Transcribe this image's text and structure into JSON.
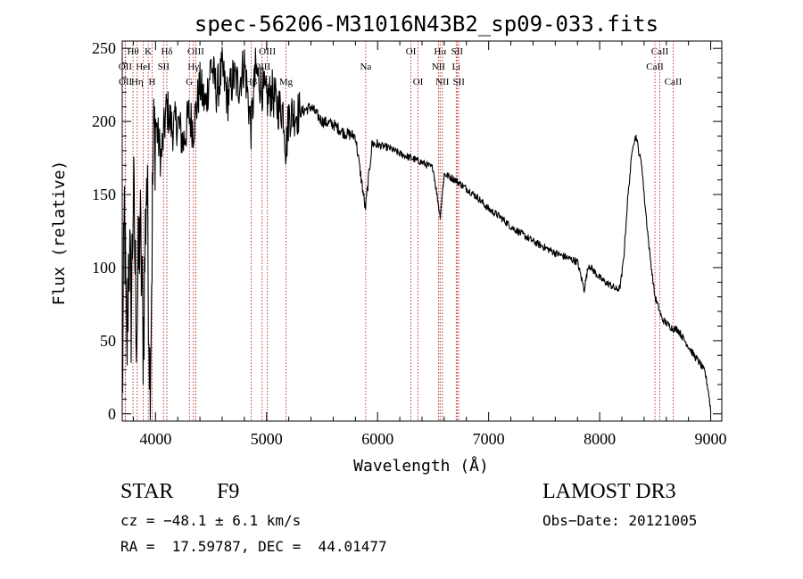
{
  "chart_data": {
    "type": "line",
    "title": "spec-56206-M31016N43B2_sp09-033.fits",
    "xlabel": "Wavelength (Å)",
    "ylabel": "Flux (relative)",
    "xlim": [
      3700,
      9100
    ],
    "ylim": [
      -5,
      255
    ],
    "xticks": [
      4000,
      5000,
      6000,
      7000,
      8000,
      9000
    ],
    "xminor_step": 200,
    "yticks": [
      0,
      50,
      100,
      150,
      200,
      250
    ],
    "yminor_step": 10,
    "series": [
      {
        "name": "flux",
        "x": [
          3700,
          3720,
          3740,
          3760,
          3780,
          3800,
          3830,
          3860,
          3890,
          3920,
          3950,
          3980,
          4000,
          4050,
          4100,
          4150,
          4200,
          4250,
          4300,
          4340,
          4400,
          4450,
          4500,
          4550,
          4600,
          4650,
          4700,
          4750,
          4800,
          4861,
          4900,
          4950,
          5000,
          5050,
          5100,
          5150,
          5175,
          5200,
          5300,
          5400,
          5500,
          5600,
          5700,
          5800,
          5890,
          5950,
          6000,
          6100,
          6200,
          6300,
          6400,
          6500,
          6563,
          6600,
          6700,
          6800,
          6900,
          7000,
          7100,
          7200,
          7300,
          7400,
          7500,
          7600,
          7700,
          7800,
          7860,
          7900,
          8000,
          8050,
          8100,
          8150,
          8180,
          8200,
          8220,
          8250,
          8280,
          8300,
          8330,
          8350,
          8380,
          8400,
          8450,
          8498,
          8542,
          8560,
          8600,
          8662,
          8700,
          8750,
          8800,
          8850,
          8900,
          8950,
          8980,
          9000
        ],
        "y": [
          5,
          140,
          30,
          120,
          70,
          150,
          60,
          130,
          50,
          170,
          20,
          180,
          200,
          175,
          210,
          195,
          200,
          185,
          205,
          195,
          225,
          210,
          240,
          220,
          235,
          215,
          230,
          225,
          240,
          195,
          235,
          225,
          215,
          220,
          210,
          208,
          180,
          205,
          206,
          210,
          200,
          198,
          192,
          190,
          140,
          185,
          184,
          182,
          178,
          175,
          172,
          168,
          135,
          164,
          160,
          154,
          148,
          140,
          135,
          128,
          123,
          118,
          114,
          110,
          107,
          104,
          85,
          102,
          93,
          90,
          88,
          85,
          86,
          95,
          110,
          145,
          170,
          185,
          190,
          180,
          170,
          150,
          110,
          80,
          70,
          65,
          62,
          58,
          58,
          52,
          46,
          40,
          35,
          28,
          15,
          2
        ]
      }
    ],
    "lines": [
      {
        "label": "Hθ",
        "x": 3797,
        "row": 0
      },
      {
        "label": "OII",
        "x": 3727,
        "row": 1
      },
      {
        "label": "OII",
        "x": 3729,
        "row": 2
      },
      {
        "label": "HeI",
        "x": 3889,
        "row": 1
      },
      {
        "label": "Hη",
        "x": 3835,
        "row": 2
      },
      {
        "label": "K",
        "x": 3934,
        "row": 0
      },
      {
        "label": "H",
        "x": 3969,
        "row": 2
      },
      {
        "label": "SII",
        "x": 4072,
        "row": 1
      },
      {
        "label": "Hδ",
        "x": 4102,
        "row": 0
      },
      {
        "label": "OIII",
        "x": 4363,
        "row": 0
      },
      {
        "label": "Hγ",
        "x": 4341,
        "row": 1
      },
      {
        "label": "G",
        "x": 4305,
        "row": 2
      },
      {
        "label": "OIII",
        "x": 5007,
        "row": 0
      },
      {
        "label": "OIII",
        "x": 4959,
        "row": 1
      },
      {
        "label": "Hβ",
        "x": 4861,
        "row": 2
      },
      {
        "label": "Mg",
        "x": 5175,
        "row": 2
      },
      {
        "label": "Na",
        "x": 5893,
        "row": 1
      },
      {
        "label": "OI",
        "x": 6300,
        "row": 0
      },
      {
        "label": "OI",
        "x": 6364,
        "row": 2
      },
      {
        "label": "Hα",
        "x": 6563,
        "row": 0
      },
      {
        "label": "NII",
        "x": 6548,
        "row": 1
      },
      {
        "label": "NII",
        "x": 6583,
        "row": 2
      },
      {
        "label": "SII",
        "x": 6716,
        "row": 0
      },
      {
        "label": "Li",
        "x": 6708,
        "row": 1
      },
      {
        "label": "SII",
        "x": 6731,
        "row": 2
      },
      {
        "label": "CaII",
        "x": 8542,
        "row": 0
      },
      {
        "label": "CaII",
        "x": 8498,
        "row": 1
      },
      {
        "label": "CaII",
        "x": 8662,
        "row": 2
      }
    ]
  },
  "info": {
    "class": "STAR",
    "subclass": "F9",
    "survey": "LAMOST DR3",
    "cz": "cz = −48.1 ± 6.1 km/s",
    "obs_date": "Obs−Date: 20121005",
    "radec": "RA =  17.59787, DEC =  44.01477"
  }
}
